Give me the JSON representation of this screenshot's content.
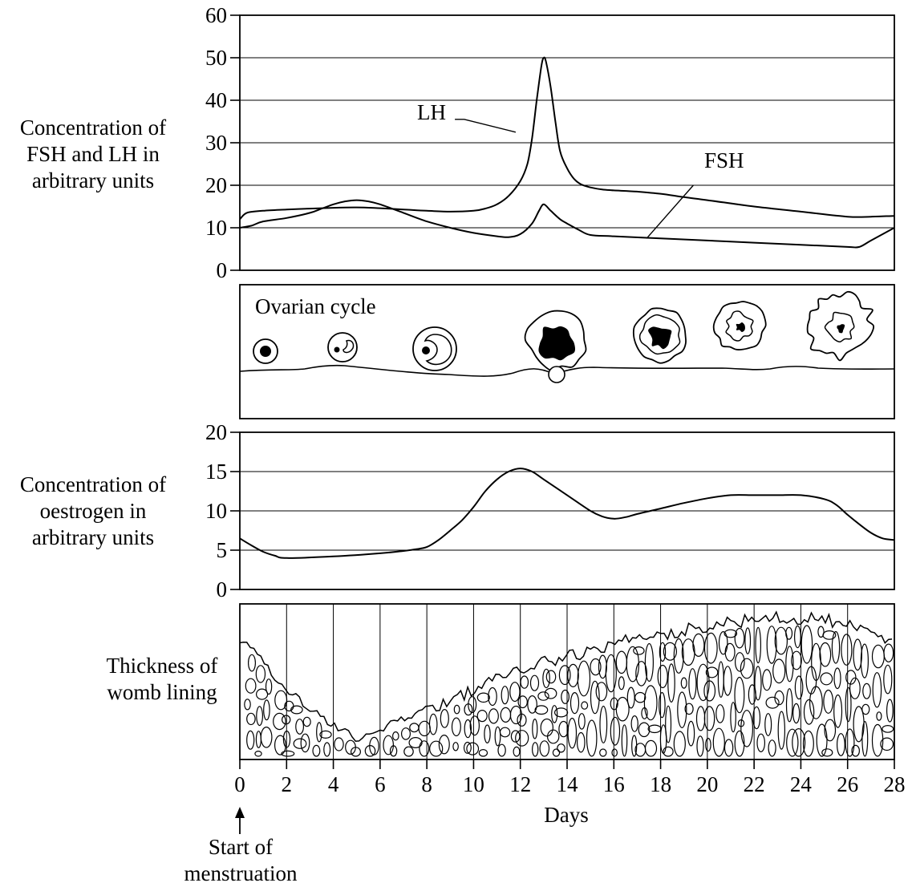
{
  "chart_data": [
    {
      "type": "line",
      "ylabel": "Concentration of FSH and LH in arbitrary units",
      "ylim": [
        0,
        60
      ],
      "yticks": [
        "0",
        "10",
        "20",
        "30",
        "40",
        "50",
        "60"
      ],
      "xlim": [
        0,
        28
      ],
      "grid": true,
      "series": [
        {
          "name": "LH",
          "x": [
            0,
            0.3,
            1,
            2,
            3,
            4,
            5,
            6,
            7,
            8,
            9,
            10,
            10.5,
            11,
            11.5,
            12,
            12.3,
            12.5,
            12.7,
            12.9,
            13,
            13.1,
            13.3,
            13.5,
            13.7,
            14,
            14.3,
            14.6,
            15,
            15.5,
            16,
            17,
            18,
            19,
            20,
            22,
            24,
            26,
            27,
            28
          ],
          "values": [
            12,
            13.5,
            14,
            14.3,
            14.5,
            14.7,
            14.8,
            14.6,
            14.3,
            14,
            13.8,
            14,
            14.5,
            15.5,
            17.5,
            21,
            25,
            31,
            40,
            48,
            50,
            49,
            43,
            35,
            28,
            24,
            21.5,
            20.2,
            19.5,
            19,
            18.8,
            18.5,
            18,
            17.2,
            16.5,
            15,
            13.8,
            12.6,
            12.6,
            12.8
          ]
        },
        {
          "name": "FSH",
          "x": [
            0,
            0.5,
            1,
            2,
            3,
            3.5,
            4,
            4.5,
            5,
            5.5,
            6,
            7,
            8,
            9,
            10,
            11,
            11.5,
            12,
            12.5,
            12.8,
            13,
            13.3,
            13.7,
            14,
            14.5,
            15,
            16,
            18,
            20,
            22,
            24,
            26,
            26.5,
            27,
            28
          ],
          "values": [
            10,
            10.5,
            11.5,
            12.3,
            13.5,
            14.5,
            15.5,
            16.2,
            16.5,
            16.2,
            15.5,
            13.5,
            11.5,
            10,
            8.8,
            8,
            7.8,
            8.5,
            11,
            14,
            15.5,
            14,
            12,
            11,
            9.5,
            8.3,
            8,
            7.5,
            7,
            6.5,
            6,
            5.5,
            5.5,
            7,
            10
          ]
        }
      ],
      "annotations": [
        "LH",
        "FSH"
      ]
    },
    {
      "type": "diagram",
      "title": "Ovarian cycle",
      "stages": [
        "primary follicle",
        "growing follicle",
        "secondary follicle",
        "mature follicle ovulating",
        "corpus luteum",
        "corpus luteum regressing",
        "corpus albicans"
      ]
    },
    {
      "type": "line",
      "ylabel": "Concentration of oestrogen in arbitrary units",
      "ylim": [
        0,
        20
      ],
      "yticks": [
        "0",
        "5",
        "10",
        "15",
        "20"
      ],
      "xlim": [
        0,
        28
      ],
      "grid": true,
      "series": [
        {
          "x": [
            0,
            0.5,
            1,
            1.5,
            2,
            4,
            6,
            7,
            7.5,
            8,
            8.5,
            9,
            9.5,
            10,
            10.5,
            11,
            11.5,
            12,
            12.5,
            13,
            14,
            15,
            15.5,
            16,
            16.5,
            17,
            18,
            19,
            20,
            21,
            22,
            23,
            24,
            25,
            25.5,
            26,
            26.5,
            27,
            27.5,
            28
          ],
          "values": [
            6.5,
            5.6,
            4.8,
            4.3,
            4,
            4.2,
            4.6,
            4.9,
            5.1,
            5.4,
            6.3,
            7.5,
            8.8,
            10.5,
            12.5,
            14,
            15,
            15.4,
            15,
            14,
            12,
            10,
            9.3,
            9,
            9.2,
            9.6,
            10.3,
            11,
            11.6,
            12,
            12,
            12,
            12,
            11.5,
            10.8,
            9.5,
            8.3,
            7.2,
            6.5,
            6.3
          ]
        }
      ]
    },
    {
      "type": "diagram",
      "ylabel": "Thickness of womb lining",
      "thickness_profile": {
        "x": [
          0,
          0.5,
          1,
          2,
          3,
          4,
          5,
          6,
          7,
          8,
          9,
          10,
          11,
          12,
          13,
          14,
          15,
          16,
          17,
          18,
          19,
          20,
          21,
          22,
          23,
          24,
          25,
          26,
          27,
          28
        ],
        "values": [
          0.75,
          0.72,
          0.62,
          0.45,
          0.33,
          0.22,
          0.13,
          0.2,
          0.26,
          0.32,
          0.38,
          0.45,
          0.52,
          0.58,
          0.63,
          0.66,
          0.7,
          0.74,
          0.78,
          0.8,
          0.83,
          0.86,
          0.88,
          0.9,
          0.91,
          0.91,
          0.9,
          0.86,
          0.8,
          0.78
        ]
      }
    }
  ],
  "x_axis": {
    "label": "Days",
    "ticks": [
      "0",
      "2",
      "4",
      "6",
      "8",
      "10",
      "12",
      "14",
      "16",
      "18",
      "20",
      "22",
      "24",
      "26",
      "28"
    ]
  },
  "labels": {
    "fsh_lh_axis": "Concentration of FSH and LH in arbitrary units",
    "fsh_lh_line1": "Concentration of",
    "fsh_lh_line2": "FSH and LH in",
    "fsh_lh_line3": "arbitrary units",
    "oestrogen_line1": "Concentration of",
    "oestrogen_line2": "oestrogen in",
    "oestrogen_line3": "arbitrary units",
    "womb_line1": "Thickness of",
    "womb_line2": "womb lining",
    "ovarian_cycle": "Ovarian cycle",
    "lh": "LH",
    "fsh": "FSH",
    "days": "Days",
    "start_line1": "Start of",
    "start_line2": "menstruation"
  }
}
